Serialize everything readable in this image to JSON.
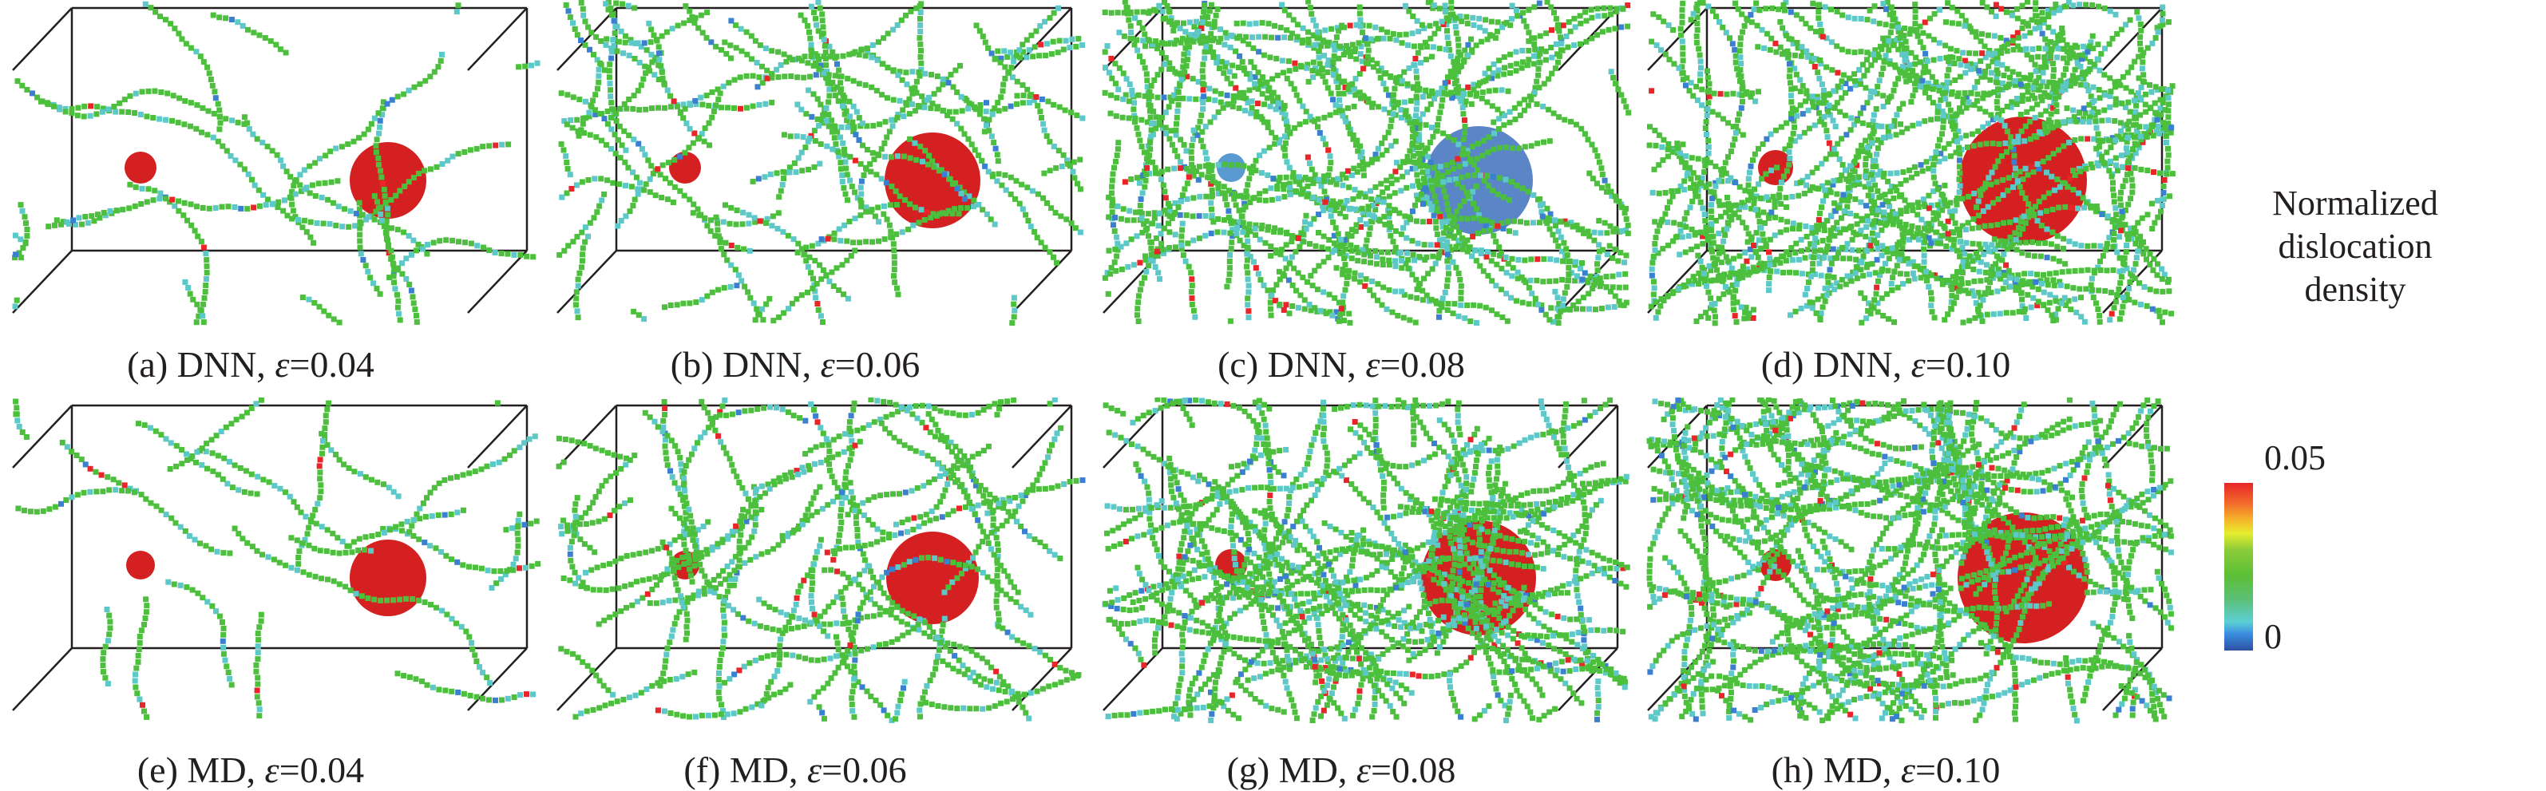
{
  "panels": [
    {
      "label": "(a)",
      "method": "DNN, ",
      "symbol": "ε",
      "value": "=0.04"
    },
    {
      "label": "(b)",
      "method": "DNN, ",
      "symbol": "ε",
      "value": "=0.06"
    },
    {
      "label": "(c)",
      "method": "DNN, ",
      "symbol": "ε",
      "value": "=0.08"
    },
    {
      "label": "(d)",
      "method": "DNN, ",
      "symbol": "ε",
      "value": "=0.10"
    },
    {
      "label": "(e)",
      "method": "MD, ",
      "symbol": "ε",
      "value": "=0.04"
    },
    {
      "label": "(f)",
      "method": "MD, ",
      "symbol": "ε",
      "value": "=0.06"
    },
    {
      "label": "(g)",
      "method": "MD, ",
      "symbol": "ε",
      "value": "=0.08"
    },
    {
      "label": "(h)",
      "method": "MD, ",
      "symbol": "ε",
      "value": "=0.10"
    }
  ],
  "colorbar": {
    "title_line1": "Normalized",
    "title_line2": "dislocation density",
    "max_label": "0.05",
    "min_label": "0",
    "colormap": [
      "#2e4fa3",
      "#3a8ee0",
      "#5ccfd6",
      "#5cbf35",
      "#e6ec2e",
      "#f26a2a",
      "#e8262a"
    ]
  },
  "colors": {
    "precipitate": "#d42020",
    "dislocation": "#4cbf3c",
    "box_edge": "#231f20"
  }
}
